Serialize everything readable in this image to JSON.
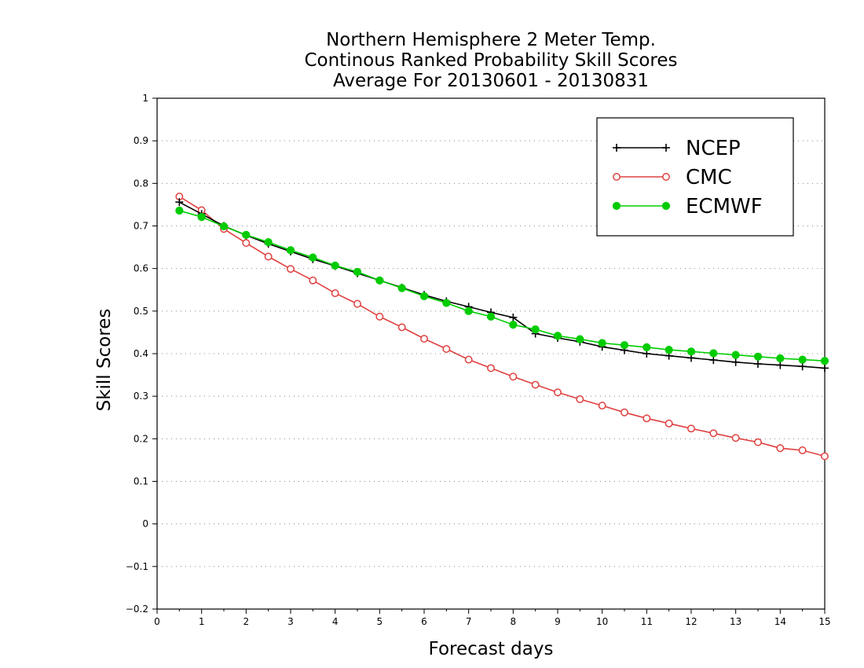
{
  "chart_data": {
    "type": "line",
    "title_lines": [
      "Northern Hemisphere 2 Meter Temp.",
      "Continous Ranked Probability Skill Scores",
      "Average For 20130601 - 20130831"
    ],
    "xlabel": "Forecast days",
    "ylabel": "Skill Scores",
    "xlim": [
      0,
      15
    ],
    "ylim": [
      -0.2,
      1
    ],
    "x_ticks": [
      "0",
      "1",
      "2",
      "3",
      "4",
      "5",
      "6",
      "7",
      "8",
      "9",
      "10",
      "11",
      "12",
      "13",
      "14",
      "15"
    ],
    "y_ticks": [
      "−0.2",
      "−0.1",
      "0",
      "0.1",
      "0.2",
      "0.3",
      "0.4",
      "0.5",
      "0.6",
      "0.7",
      "0.8",
      "0.9",
      "1"
    ],
    "grid": "horizontal dotted",
    "legend_position": "top-right",
    "x": [
      0.5,
      1,
      1.5,
      2,
      2.5,
      3,
      3.5,
      4,
      4.5,
      5,
      5.5,
      6,
      6.5,
      7,
      7.5,
      8,
      8.5,
      9,
      9.5,
      10,
      10.5,
      11,
      11.5,
      12,
      12.5,
      13,
      13.5,
      14,
      14.5,
      15
    ],
    "series": [
      {
        "name": "NCEP",
        "color": "#000000",
        "marker": "plus",
        "values": [
          0.756,
          0.728,
          0.7,
          0.678,
          0.658,
          0.64,
          0.622,
          0.606,
          0.589,
          0.572,
          0.555,
          0.538,
          0.523,
          0.51,
          0.497,
          0.485,
          0.447,
          0.437,
          0.428,
          0.416,
          0.408,
          0.4,
          0.395,
          0.39,
          0.385,
          0.38,
          0.376,
          0.373,
          0.37,
          0.366
        ]
      },
      {
        "name": "CMC",
        "color": "#e04040",
        "marker": "open-circle",
        "values": [
          0.769,
          0.737,
          0.693,
          0.66,
          0.628,
          0.599,
          0.572,
          0.542,
          0.517,
          0.487,
          0.462,
          0.435,
          0.411,
          0.386,
          0.366,
          0.346,
          0.327,
          0.309,
          0.293,
          0.278,
          0.262,
          0.248,
          0.236,
          0.224,
          0.213,
          0.202,
          0.192,
          0.178,
          0.173,
          0.159
        ]
      },
      {
        "name": "ECMWF",
        "color": "#00cc00",
        "marker": "filled-circle",
        "values": [
          0.736,
          0.721,
          0.699,
          0.679,
          0.662,
          0.643,
          0.626,
          0.607,
          0.592,
          0.572,
          0.554,
          0.535,
          0.519,
          0.5,
          0.487,
          0.468,
          0.457,
          0.442,
          0.434,
          0.425,
          0.42,
          0.415,
          0.409,
          0.405,
          0.401,
          0.397,
          0.393,
          0.389,
          0.386,
          0.383
        ]
      }
    ]
  }
}
